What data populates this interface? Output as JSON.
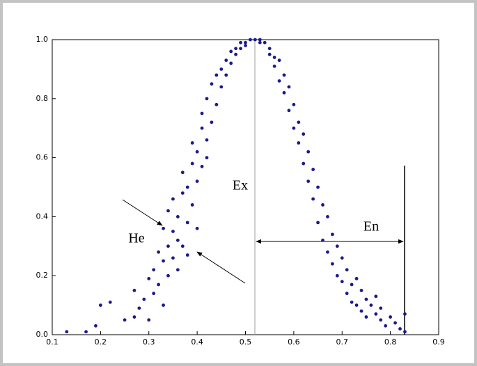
{
  "chart_data": {
    "type": "scatter",
    "color": "#1a1a8c",
    "annotations": {
      "ex": "Ex",
      "en": "En",
      "he": "He"
    },
    "xlim": [
      0.1,
      0.9
    ],
    "xticks": [
      0.1,
      0.2,
      0.3,
      0.4,
      0.5,
      0.6,
      0.7,
      0.8,
      0.9
    ],
    "ylim": [
      0,
      1
    ],
    "yticks": [
      {
        "value": 0,
        "label": "0.0"
      },
      0.2,
      0.4,
      0.6,
      0.8,
      {
        "value": 1,
        "label": "1.0"
      }
    ],
    "x": [
      0.13,
      0.17,
      0.19,
      0.2,
      0.22,
      0.25,
      0.27,
      0.27,
      0.28,
      0.29,
      0.3,
      0.3,
      0.31,
      0.31,
      0.32,
      0.32,
      0.33,
      0.33,
      0.33,
      0.34,
      0.34,
      0.34,
      0.35,
      0.35,
      0.35,
      0.36,
      0.36,
      0.36,
      0.37,
      0.37,
      0.37,
      0.38,
      0.38,
      0.38,
      0.39,
      0.39,
      0.39,
      0.4,
      0.4,
      0.4,
      0.41,
      0.41,
      0.41,
      0.42,
      0.42,
      0.42,
      0.43,
      0.43,
      0.44,
      0.44,
      0.45,
      0.45,
      0.46,
      0.46,
      0.47,
      0.47,
      0.48,
      0.48,
      0.49,
      0.49,
      0.5,
      0.5,
      0.51,
      0.52,
      0.53,
      0.53,
      0.54,
      0.55,
      0.55,
      0.56,
      0.56,
      0.57,
      0.57,
      0.58,
      0.58,
      0.59,
      0.59,
      0.6,
      0.6,
      0.61,
      0.61,
      0.62,
      0.62,
      0.63,
      0.63,
      0.64,
      0.64,
      0.65,
      0.65,
      0.66,
      0.66,
      0.67,
      0.67,
      0.68,
      0.68,
      0.69,
      0.69,
      0.7,
      0.7,
      0.71,
      0.71,
      0.72,
      0.72,
      0.73,
      0.73,
      0.74,
      0.74,
      0.75,
      0.75,
      0.76,
      0.77,
      0.77,
      0.78,
      0.78,
      0.79,
      0.8,
      0.81,
      0.82,
      0.83,
      0.83
    ],
    "values": [
      0.01,
      0.01,
      0.03,
      0.1,
      0.11,
      0.05,
      0.06,
      0.15,
      0.09,
      0.12,
      0.19,
      0.05,
      0.22,
      0.14,
      0.28,
      0.17,
      0.25,
      0.1,
      0.36,
      0.3,
      0.42,
      0.2,
      0.35,
      0.26,
      0.46,
      0.32,
      0.4,
      0.22,
      0.48,
      0.3,
      0.55,
      0.38,
      0.27,
      0.5,
      0.58,
      0.44,
      0.65,
      0.52,
      0.62,
      0.36,
      0.7,
      0.57,
      0.75,
      0.66,
      0.8,
      0.6,
      0.72,
      0.85,
      0.78,
      0.88,
      0.84,
      0.9,
      0.88,
      0.93,
      0.92,
      0.96,
      0.95,
      0.97,
      0.97,
      0.99,
      0.99,
      0.98,
      1.0,
      1.0,
      1.0,
      0.99,
      0.99,
      0.97,
      0.95,
      0.94,
      0.91,
      0.93,
      0.86,
      0.88,
      0.82,
      0.84,
      0.76,
      0.78,
      0.7,
      0.72,
      0.65,
      0.68,
      0.58,
      0.62,
      0.52,
      0.56,
      0.46,
      0.5,
      0.38,
      0.44,
      0.32,
      0.4,
      0.28,
      0.34,
      0.24,
      0.3,
      0.2,
      0.26,
      0.18,
      0.22,
      0.14,
      0.17,
      0.11,
      0.19,
      0.1,
      0.15,
      0.08,
      0.12,
      0.06,
      0.1,
      0.07,
      0.13,
      0.05,
      0.09,
      0.03,
      0.06,
      0.04,
      0.02,
      0.07,
      0.01
    ]
  }
}
